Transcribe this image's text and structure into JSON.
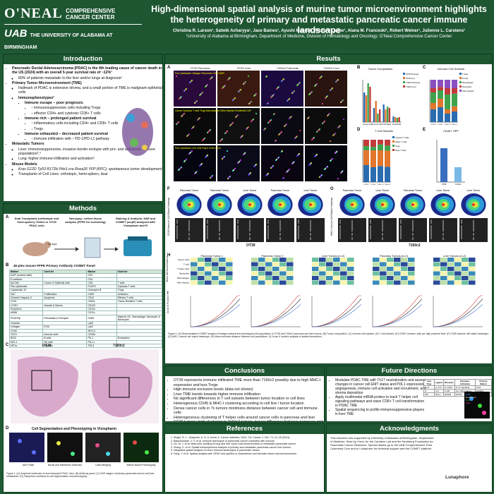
{
  "header": {
    "logo_name": "O'NEAL",
    "logo_sub": [
      "COMPREHENSIVE",
      "CANCER CENTER"
    ],
    "uab": "UAB",
    "uab_sub": "THE UNIVERSITY OF ALABAMA AT BIRMINGHAM",
    "title": "High-dimensional spatial analysis of murine tumor microenvironment highlights the heterogeneity of primary and metastatic pancreatic cancer immune landscape",
    "authors": "Christina R. Larson¹, Satwik Acharyya¹, Jace Baines¹, Ayushi Mandal¹, Richard Laube¹, Alana M. Franceski¹, Robert Welner¹, Julienne L. Carstens¹",
    "affiliation": "¹University of Alabama at Birmingham, Department of Medicine, Division of Hematology and Oncology; O'Neal Comprehensive Cancer Center"
  },
  "sections": {
    "introduction": "Introduction",
    "methods": "Methods",
    "results": "Results",
    "conclusions": "Conclusions",
    "future": "Future Directions",
    "references": "References",
    "acknowledgments": "Acknowledgments"
  },
  "intro": {
    "b1": "Pancreatic Ductal Adenocarcinoma (PDAC) is the 4th leading cause of cancer death in the US (2024) with an overall 5-year survival rate of ~12%¹",
    "b1a": "80% of patients metastatic to the liver and/or lungs at diagnosis¹",
    "b2": "Primary Tumor Microenvironment (TME)",
    "b2a": "Hallmark of PDAC is extensive stroma, and a small portion of TME is malignant epithelial cells",
    "b2b": "Immunophenotypes²",
    "b2b1": "Immune escape – poor prognosis",
    "b2b1a": "↑ immunosuppressive cells including Tregs",
    "b2b1b": "↓ effector CD4+ and cytotoxic CD8+ T cells",
    "b2b2": "Immune rich – prolonged patient survival",
    "b2b2a": "↑ inflammatory cells including CD4+ and CD8+ T cells",
    "b2b2b": "↓ Tregs",
    "b2b3": "Immune exhausted – decreased patient survival",
    "b2b3a": "↑ immune infiltration with ↑ PD-1/PD-L1 pathway",
    "b3": "Metastatic Tumors",
    "b3a": "Liver: immunosuppressive, invasive border ecotype with pro- and anti-tumor immune populations³,⁴",
    "b3b": "Lung: higher immune infiltration and activation⁵",
    "b4": "Mouse Models",
    "b4a": "Kras G12D Tp53 R172H Pdx1-cre Rosa26 YFP (KPC); spontaneous tumor development",
    "b4b": "Transplants of Cell Lines: orthotopic, hemi-spleen, dual"
  },
  "methods": {
    "a_label": "A",
    "a1": "Dual Transplants (orthotopic and hemi-spleen) 7160c2 or OT39 PDAC cells",
    "a2": "Necropsy: collect tissue samples (FFPE for sectioning)",
    "a3": "Staining & Analysis: H&E and COMET (seqIF) analyzed with Visiopharm and R",
    "days": "~ 30 days",
    "b_label": "B",
    "b_title": "46-plex mouse FFPE Primary Antibody COMET Panel",
    "table_headers": [
      "Marker",
      "Used for",
      "Marker",
      "Used for"
    ],
    "table_left": [
      [
        "DAPI (nuclear stain)",
        ""
      ],
      [
        "E-cadherin",
        ""
      ],
      [
        "EpCAM",
        "Cancer & Epithelial cells"
      ],
      [
        "Pan-cytokeratin",
        ""
      ],
      [
        "Cytokeratin 19",
        ""
      ],
      [
        "Ki67",
        "Proliferation"
      ],
      [
        "Cleaved Caspase-3",
        "Apoptosis"
      ],
      [
        "CD31",
        ""
      ],
      [
        "LYVE1",
        "Vessels & Nerves"
      ],
      [
        "Peripherin",
        ""
      ],
      [
        "αSMA",
        ""
      ],
      [
        "PDGFRβ",
        "Fibroblasts & Pericytes"
      ],
      [
        "Vimentin",
        ""
      ],
      [
        "Collagen",
        "ECM"
      ],
      [
        "CD45",
        ""
      ],
      [
        "CD19",
        "Immune cells"
      ],
      [
        "B220",
        "B cells"
      ],
      [
        "NK1.1",
        "NK cells"
      ],
      [
        "HIF1α",
        "Hypoxia"
      ]
    ],
    "table_right": [
      [
        "CD3",
        ""
      ],
      [
        "CD4",
        ""
      ],
      [
        "CD8",
        "T cells"
      ],
      [
        "FOXP3",
        "Cytotoxic T cells"
      ],
      [
        "Granzyme B",
        "Tregs"
      ],
      [
        "CD69",
        "Activation"
      ],
      [
        "CD44",
        "Effector T cells"
      ],
      [
        "CD62L",
        "Tissue Resident T cells"
      ],
      [
        "CD103",
        ""
      ],
      [
        "CD11b",
        ""
      ],
      [
        "CD11c",
        ""
      ],
      [
        "F4/80",
        "Myeloid, DC, Macrophage, Monocyte, & Neutrophil"
      ],
      [
        "Ly6G",
        ""
      ],
      [
        "Ly6C",
        ""
      ],
      [
        "MHC-II",
        ""
      ],
      [
        "CD206",
        ""
      ],
      [
        "PD-1",
        "Exhaustion"
      ],
      [
        "PD-L1",
        ""
      ],
      [
        "TIM-3",
        ""
      ]
    ],
    "c_label": "C",
    "c_ot39": "OT39",
    "c_7160": "7160c2",
    "d_label": "D",
    "d_title": "Cell Segmentation and Phenotyping in Visiopharm",
    "d_steps": [
      "DAPI Stain",
      "Nuclei and Membrane Detection",
      "Label Merging",
      "Marker Based Phenotyping"
    ],
    "caption": "Figure 1. (A) Graphical schematic of dual transplant PDAC mice. (B) Antibody panel. (C) H&E images of primary pancreatic tumors and liver metastases. (D) Visiopharm workflow for cell segmentation and phenotyping."
  },
  "results": {
    "panel_labels": [
      "A",
      "B",
      "C",
      "D",
      "E",
      "F",
      "G",
      "H",
      "I"
    ],
    "a_cols": [
      "OT39 Pancreas",
      "OT39 Liver",
      "7160c2 Pancreas",
      "7160c2 Liver"
    ],
    "a_row1": "Pan Cytokeratin  Collagen  Fibronectin  CD34  DAPI",
    "a_row2": "Cancer  Cytotoxic T cells  Tregs  Macrophages  Other Myeloid  Endothelial  CAF",
    "a_row3": "Pan Cytokeratin  CD4  CD8  Foxp3  CD45  CD31",
    "b_title": "Tumor Composition",
    "c_title": "Immune Cell Subsets",
    "d_title": "T Cell Subsets",
    "e_title": "CD45+ HPF",
    "legend_b": [
      "OT39 Pancreas",
      "OT39 Liver",
      "7160c2 Pancreas",
      "7160c2 Liver"
    ],
    "legend_c": [
      "T Cells",
      "B Cells",
      "Macrophages",
      "Neutrophils",
      "Other Myeloid"
    ],
    "legend_d": [
      "Cytotoxic T Cells",
      "Helper T Cells",
      "Tregs",
      "Naive T Cells"
    ],
    "e_groups": [
      "OT39",
      "7160c2"
    ],
    "f_group": "OT39",
    "g_group": "7160c2",
    "f_cols": [
      "Pancreas Tumor",
      "Pancreas Tumor",
      "Liver Tumor",
      "Pancreas Tumor",
      "Liver Tumor"
    ],
    "g_cols": [
      "Pancreas Tumor",
      "Liver Tumor",
      "Pancreas Tumor",
      "Liver Tumor",
      "Liver Tumor"
    ],
    "f_ylabel": "CD45 Immune Cell Object Heatmap",
    "g_ylabel": "MHC-I Cancer Cell Object Heatmap",
    "h_titles": [
      "Pancreas Tumor 1",
      "Pancreas Tumor 2",
      "Liver Tumors (n=2)",
      "Pancreas Tumors (n=2)",
      "Liver Tumors (n=2)"
    ],
    "h_ylabel": "Mean Minimum Distance",
    "h_rows": [
      "Cancer Cells",
      "T cells",
      "T helper Cells",
      "Neutrophils",
      "Macrophages",
      "Other Myeloid"
    ],
    "i_ylabel": "Cross K Function",
    "caption": "Figure 2. (A) Representative COMET images of lineage markers and phenotyped cell populations in OT39 and 7160c2 pancreas and liver tumors. (B) Tumor composition. (C) Immune cell subsets. (D) T cell subsets. (E) CD45+ immune cells per high powered field. (F) CD45 immune cell object heatmaps. (G) MHC-I cancer cell object heatmaps. (H) Mean minimum distance between cell populations. (I) Cross K function analysis of spatial interactions."
  },
  "conclusions": [
    "OT39 represents immune infiltrated TME more than 7160c2 possibly due to high MHC-I expression and less Tregs",
    "High immune exclusion levels (data not shown)",
    "Liver TME trends towards higher immune infiltration",
    "No significant differences in T cell subsets between tumor location or cell lines",
    "Heterogenous CD45 & MHC-I clustering according to cell line / tumor location",
    "Dense cancer cells in 7x tumors minimizes distance between cancer cell and immune cells",
    "Heterogeneous clustering of T helper cells around cancer cells in pancreas and liver OT39 tumors; high clustering in 7160c2 tumors, but no difference between pancreas and liver"
  ],
  "future": [
    "Modulate PDAC TME with Th17 neutralization and assess changes in cancer cell EMT status and PDL1 expression, angiogenesis, immune cell activation and recruitment, and stroma deposition",
    "Apply multimodal mRNA probes to track T helper cell signaling pathways and naive CD8+ T cell transformation in PDAC TME",
    "Spatial sequencing to profile immunosuppressive players in liver TME"
  ],
  "future_table": {
    "headers": [
      "Cell Type",
      "Ligand",
      "Receptor",
      "Receptor Activation",
      "Primary Marker"
    ],
    "rows": [
      [
        "IL-17",
        "IL-17A",
        "IL-17RA",
        "IL-17 signaling",
        "CD4"
      ],
      [
        "IL",
        "IL-6",
        "IL-6R",
        "pro-inflammatory",
        "FOXP3"
      ],
      [
        "IFN",
        "IFN-γ",
        "IFNGR",
        "STAT1",
        "CD8"
      ]
    ],
    "legend": [
      "DAPI",
      "E-cadherin",
      "IL-17",
      "CD4"
    ]
  },
  "references": [
    "Siegel, R. L., Giaquinto, A. N. & Jemal, A. Cancer statistics, 2024. CA: Cancer J. Clin. 74, 12–49 (2024).",
    "Balachandran, V. P. et al. Immune phenotype of pancreatic cancer correlates with survival.",
    "Ho, W. J. et al. Multi-omic profiling of lung and liver tumor microenvironments of metastatic pancreatic cancer.",
    "Zhang, S. et al. Spatial transcriptomics analysis of primary and metastatic pancreatic cancer liver tumors.",
    "Integrated spatial analysis of tumor immune landscapes in pancreatic cancer.",
    "Fang, Y. et al. Spatial analysis with SPIAT and spaSim to characterize and simulate tissue microenvironments."
  ],
  "acknowledgments": "This research was supported by University of Alabama at Birmingham, Department of Medicine, Start Up Fund, for the Carstens Lab and the Hirshberg Foundation for Pancreatic Cancer Research. Special thanks go to the UAB Comprehensive Flow Cytometry Core and to Lunaphore for technical support and the COMET platform.",
  "ack_logo": "Lunaphore",
  "colors": {
    "green": "#1e5632",
    "header_green": "#1e5632",
    "bar_green": "#2d6e3e"
  },
  "chart_data": [
    {
      "type": "bar",
      "title": "Tumor Composition",
      "categories": [
        "Cancer Cells",
        "Immune Cells",
        "Fibroblasts",
        "Endothelial"
      ],
      "series": [
        {
          "name": "OT39 Pancreas",
          "values": [
            42,
            20,
            25,
            8
          ]
        },
        {
          "name": "OT39 Liver",
          "values": [
            38,
            30,
            18,
            7
          ]
        },
        {
          "name": "7160c2 Pancreas",
          "values": [
            55,
            12,
            22,
            6
          ]
        },
        {
          "name": "7160c2 Liver",
          "values": [
            50,
            18,
            20,
            7
          ]
        }
      ],
      "ylabel": "Percent of Cells",
      "ylim": [
        0,
        60
      ]
    },
    {
      "type": "bar",
      "title": "Immune Cell Subsets",
      "categories": [
        "OT39 P",
        "OT39 L",
        "7160c2 P",
        "7160c2 L"
      ],
      "series": [
        {
          "name": "T Cells",
          "values": [
            30,
            35,
            20,
            25
          ]
        },
        {
          "name": "B Cells",
          "values": [
            15,
            20,
            10,
            12
          ]
        },
        {
          "name": "Macrophages",
          "values": [
            25,
            20,
            35,
            30
          ]
        },
        {
          "name": "Neutrophils",
          "values": [
            10,
            8,
            15,
            13
          ]
        },
        {
          "name": "Other Myeloid",
          "values": [
            20,
            17,
            20,
            20
          ]
        }
      ],
      "ylim": [
        0,
        100
      ]
    },
    {
      "type": "bar",
      "title": "T Cell Subsets",
      "categories": [
        "OT39 P",
        "OT39 L",
        "7160c2 P",
        "7160c2 L"
      ],
      "series": [
        {
          "name": "Cytotoxic T Cells",
          "values": [
            40,
            35,
            38,
            36
          ]
        },
        {
          "name": "Helper T Cells",
          "values": [
            35,
            40,
            37,
            38
          ]
        },
        {
          "name": "Tregs",
          "values": [
            10,
            8,
            14,
            12
          ]
        },
        {
          "name": "Naive T Cells",
          "values": [
            15,
            17,
            11,
            14
          ]
        }
      ],
      "ylim": [
        0,
        100
      ]
    },
    {
      "type": "bar",
      "title": "CD45+ HPF",
      "categories": [
        "OT39",
        "7160c2"
      ],
      "values": [
        80,
        35
      ],
      "ylim": [
        0,
        100
      ]
    }
  ]
}
